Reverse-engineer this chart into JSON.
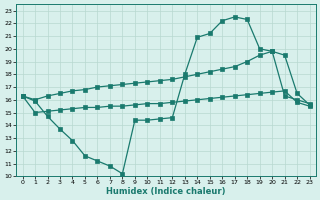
{
  "xlabel": "Humidex (Indice chaleur)",
  "x_values": [
    0,
    1,
    2,
    3,
    4,
    5,
    6,
    7,
    8,
    9,
    10,
    11,
    12,
    13,
    14,
    15,
    16,
    17,
    18,
    19,
    20,
    21,
    22,
    23
  ],
  "line1_y": [
    16.3,
    15.9,
    14.7,
    13.7,
    12.8,
    11.6,
    11.2,
    10.8,
    10.2,
    14.4,
    14.4,
    14.5,
    14.6,
    18.0,
    20.9,
    21.2,
    22.2,
    22.5,
    22.3,
    20.0,
    19.8,
    16.3,
    16.0,
    15.7
  ],
  "line2_y": [
    16.3,
    16.0,
    16.3,
    16.5,
    16.7,
    16.8,
    17.0,
    17.1,
    17.2,
    17.3,
    17.4,
    17.5,
    17.6,
    17.8,
    18.0,
    18.2,
    18.4,
    18.6,
    19.0,
    19.5,
    19.8,
    19.5,
    16.5,
    15.6
  ],
  "line3_y": [
    16.3,
    15.0,
    15.1,
    15.2,
    15.3,
    15.4,
    15.4,
    15.5,
    15.5,
    15.6,
    15.7,
    15.7,
    15.8,
    15.9,
    16.0,
    16.1,
    16.2,
    16.3,
    16.4,
    16.5,
    16.6,
    16.7,
    15.8,
    15.5
  ],
  "line_color": "#1a7a6e",
  "bg_color": "#d8f0ec",
  "grid_color": "#b8d8d0",
  "ylim": [
    10,
    23.5
  ],
  "xlim": [
    -0.5,
    23.5
  ],
  "yticks": [
    10,
    11,
    12,
    13,
    14,
    15,
    16,
    17,
    18,
    19,
    20,
    21,
    22,
    23
  ],
  "xticks": [
    0,
    1,
    2,
    3,
    4,
    5,
    6,
    7,
    8,
    9,
    10,
    11,
    12,
    13,
    14,
    15,
    16,
    17,
    18,
    19,
    20,
    21,
    22,
    23
  ]
}
